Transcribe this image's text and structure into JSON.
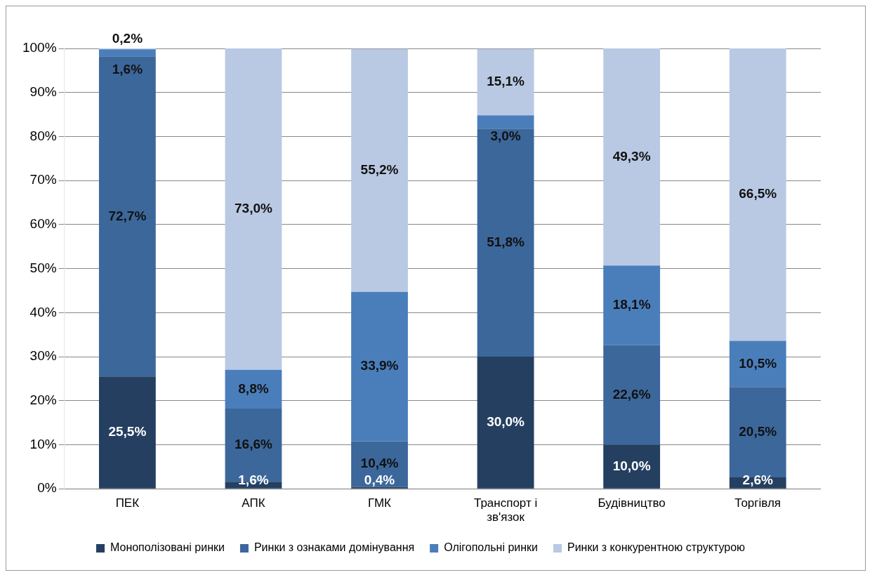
{
  "chart_data": {
    "type": "bar",
    "stacked": true,
    "categories": [
      "ПЕК",
      "АПК",
      "ГМК",
      "Транспорт і зв'язок",
      "Будівництво",
      "Торгівля"
    ],
    "series": [
      {
        "name": "Монополізовані ринки",
        "color": "#243f60",
        "values": [
          25.5,
          1.6,
          0.4,
          30.0,
          10.0,
          2.6
        ],
        "value_labels": [
          "25,5%",
          "1,6%",
          "0,4%",
          "30,0%",
          "10,0%",
          "2,6%"
        ]
      },
      {
        "name": "Ринки з ознаками домінування",
        "color": "#3c679b",
        "values": [
          72.7,
          16.6,
          10.4,
          51.8,
          22.6,
          20.5
        ],
        "value_labels": [
          "72,7%",
          "16,6%",
          "10,4%",
          "51,8%",
          "22,6%",
          "20,5%"
        ]
      },
      {
        "name": "Олігопольні ринки",
        "color": "#4a7ebb",
        "values": [
          1.6,
          8.8,
          33.9,
          3.0,
          18.1,
          10.5
        ],
        "value_labels": [
          "1,6%",
          "8,8%",
          "33,9%",
          "3,0%",
          "18,1%",
          "10,5%"
        ]
      },
      {
        "name": "Ринки з конкурентною структурою",
        "color": "#b9c9e3",
        "values": [
          0.2,
          73.0,
          55.2,
          15.1,
          49.3,
          66.5
        ],
        "value_labels": [
          "0,2%",
          "73,0%",
          "55,2%",
          "15,1%",
          "49,3%",
          "66,5%"
        ]
      }
    ],
    "ylim": [
      0,
      100
    ],
    "yticks": [
      {
        "value": 0,
        "label": "0%"
      },
      {
        "value": 10,
        "label": "10%"
      },
      {
        "value": 20,
        "label": "20%"
      },
      {
        "value": 30,
        "label": "30%"
      },
      {
        "value": 40,
        "label": "40%"
      },
      {
        "value": 50,
        "label": "50%"
      },
      {
        "value": 60,
        "label": "60%"
      },
      {
        "value": 70,
        "label": "70%"
      },
      {
        "value": 80,
        "label": "80%"
      },
      {
        "value": 90,
        "label": "90%"
      },
      {
        "value": 100,
        "label": "100%"
      }
    ],
    "grid": "y",
    "legend": "bottom"
  }
}
